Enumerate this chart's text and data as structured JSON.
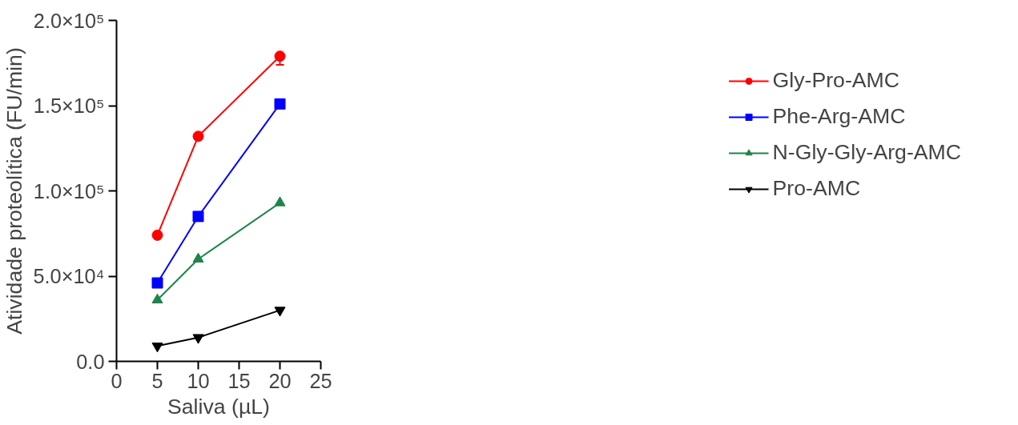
{
  "chart_data": {
    "type": "line",
    "xlabel": "Saliva (µL)",
    "ylabel": "Atividade proteolítica (FU/min)",
    "x": [
      5,
      10,
      20
    ],
    "xlim": [
      0,
      25
    ],
    "xticks": [
      0,
      5,
      10,
      15,
      20,
      25
    ],
    "ylim": [
      0,
      200000
    ],
    "yticks": [
      {
        "value": 0,
        "label": "0.0"
      },
      {
        "value": 50000,
        "label": "5.0×10⁴"
      },
      {
        "value": 100000,
        "label": "1.0×10⁵"
      },
      {
        "value": 150000,
        "label": "1.5×10⁵"
      },
      {
        "value": 200000,
        "label": "2.0×10⁵"
      }
    ],
    "grid": false,
    "legend": "right",
    "line_style": "solid",
    "series": [
      {
        "name": "Gly-Pro-AMC",
        "color": "#ff0000",
        "marker": "circle",
        "values": [
          74000,
          132000,
          179000
        ],
        "errors": [
          null,
          null,
          [
            174000,
            179000
          ]
        ]
      },
      {
        "name": "Phe-Arg-AMC",
        "color": "#0000ff",
        "marker": "square",
        "values": [
          46000,
          85000,
          151000
        ]
      },
      {
        "name": "N-Gly-Gly-Arg-AMC",
        "color": "#1e8449",
        "marker": "triangle",
        "values": [
          36000,
          60000,
          93000
        ]
      },
      {
        "name": "Pro-AMC",
        "color": "#000000",
        "marker": "triangle_down",
        "values": [
          9000,
          14000,
          30000
        ]
      }
    ]
  }
}
